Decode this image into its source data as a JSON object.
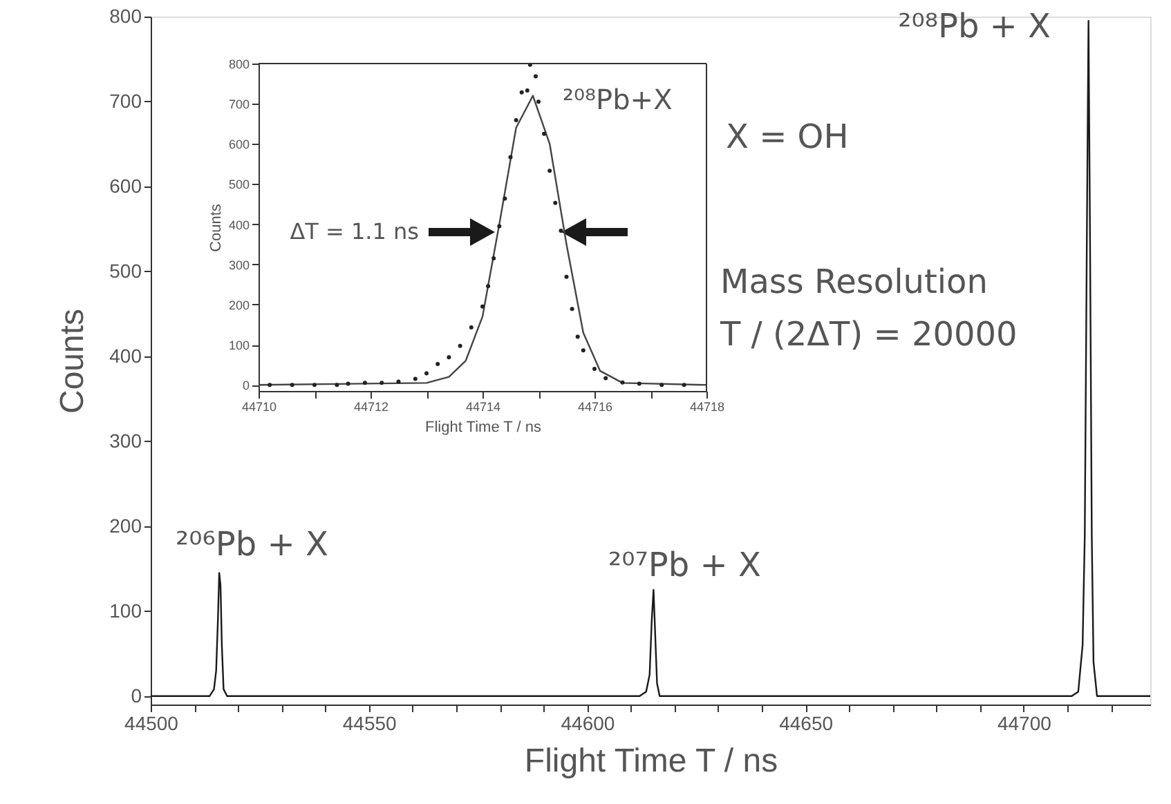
{
  "chart_data": [
    {
      "type": "line",
      "xlabel": "Flight Time T / ns",
      "ylabel": "Counts",
      "xlim": [
        44500,
        44729
      ],
      "ylim": [
        -10,
        800
      ],
      "xticks": [
        44500,
        {
          "value": 44510,
          "label": null
        },
        {
          "value": 44520,
          "label": null
        },
        {
          "value": 44530,
          "label": null
        },
        {
          "value": 44540,
          "label": null
        },
        44550,
        {
          "value": 44560,
          "label": null
        },
        {
          "value": 44570,
          "label": null
        },
        {
          "value": 44580,
          "label": null
        },
        {
          "value": 44590,
          "label": null
        },
        44600,
        {
          "value": 44610,
          "label": null
        },
        {
          "value": 44620,
          "label": null
        },
        {
          "value": 44630,
          "label": null
        },
        {
          "value": 44640,
          "label": null
        },
        44650,
        {
          "value": 44660,
          "label": null
        },
        {
          "value": 44670,
          "label": null
        },
        {
          "value": 44680,
          "label": null
        },
        {
          "value": 44690,
          "label": null
        },
        44700,
        {
          "value": 44710,
          "label": null
        },
        {
          "value": 44720,
          "label": null
        }
      ],
      "yticks": [
        0,
        100,
        200,
        300,
        400,
        500,
        600,
        700,
        800
      ],
      "grid": false,
      "marker": "none",
      "line_style": "solid",
      "series": [
        {
          "color": "#1a1a1a",
          "x": [
            44500,
            44510,
            44513.5,
            44514.5,
            44515,
            44515.4,
            44515.7,
            44516,
            44516.3,
            44516.7,
            44517.5,
            44612,
            44613.5,
            44614.3,
            44614.8,
            44615.2,
            44615.6,
            44616,
            44616.6,
            44711,
            44712.5,
            44713.5,
            44714,
            44714.5,
            44714.85,
            44715.2,
            44715.6,
            44716,
            44716.8,
            44729
          ],
          "values": [
            0,
            0,
            0,
            8,
            30,
            90,
            145,
            130,
            60,
            8,
            0,
            0,
            5,
            25,
            90,
            125,
            70,
            15,
            0,
            0,
            5,
            60,
            190,
            560,
            795,
            540,
            190,
            40,
            0,
            0
          ]
        }
      ],
      "annotations": [
        "²⁰⁶Pb + X",
        "²⁰⁷Pb + X",
        "²⁰⁸Pb + X",
        "X = OH",
        "Mass Resolution",
        "T / (2ΔT) = 20000"
      ]
    },
    {
      "type": "scatter",
      "xlabel": "Flight Time T / ns",
      "ylabel": "Counts",
      "xlim": [
        44710,
        44718
      ],
      "ylim": [
        -15,
        800
      ],
      "xticks": [
        44710,
        {
          "value": 44711,
          "label": null
        },
        44712,
        {
          "value": 44713,
          "label": null
        },
        44714,
        {
          "value": 44715,
          "label": null
        },
        44716,
        {
          "value": 44717,
          "label": null
        },
        44718
      ],
      "yticks": [
        0,
        100,
        200,
        300,
        400,
        500,
        600,
        700,
        800
      ],
      "grid": false,
      "series": [
        {
          "type": "scatter",
          "marker": "circle",
          "color": "#222222",
          "x": [
            44710.2,
            44710.6,
            44711,
            44711.4,
            44711.6,
            44711.9,
            44712.2,
            44712.5,
            44712.8,
            44713,
            44713.2,
            44713.4,
            44713.6,
            44713.8,
            44714,
            44714.1,
            44714.2,
            44714.3,
            44714.4,
            44714.5,
            44714.6,
            44714.7,
            44714.8,
            44714.85,
            44714.95,
            44715,
            44715.1,
            44715.2,
            44715.3,
            44715.4,
            44715.5,
            44715.6,
            44715.7,
            44715.8,
            44716,
            44716.2,
            44716.5,
            44716.8,
            44717.2,
            44717.6
          ],
          "values": [
            0,
            0,
            0,
            0,
            3,
            5,
            5,
            8,
            15,
            29,
            52,
            69,
            97,
            143,
            195,
            246,
            315,
            395,
            464,
            567,
            659,
            728,
            733,
            797,
            768,
            705,
            625,
            533,
            453,
            384,
            269,
            189,
            120,
            86,
            40,
            17,
            6,
            3,
            0,
            0
          ]
        },
        {
          "type": "line",
          "marker": "none",
          "color": "#444444",
          "x": [
            44710,
            44713,
            44713.4,
            44713.7,
            44714,
            44714.3,
            44714.6,
            44714.9,
            44715.2,
            44715.5,
            44715.8,
            44716.1,
            44716.5,
            44718
          ],
          "values": [
            0,
            5,
            20,
            60,
            170,
            400,
            640,
            720,
            600,
            350,
            130,
            35,
            5,
            0
          ]
        }
      ],
      "annotations": [
        "²⁰⁸Pb+X",
        "ΔT = 1.1 ns"
      ]
    }
  ]
}
